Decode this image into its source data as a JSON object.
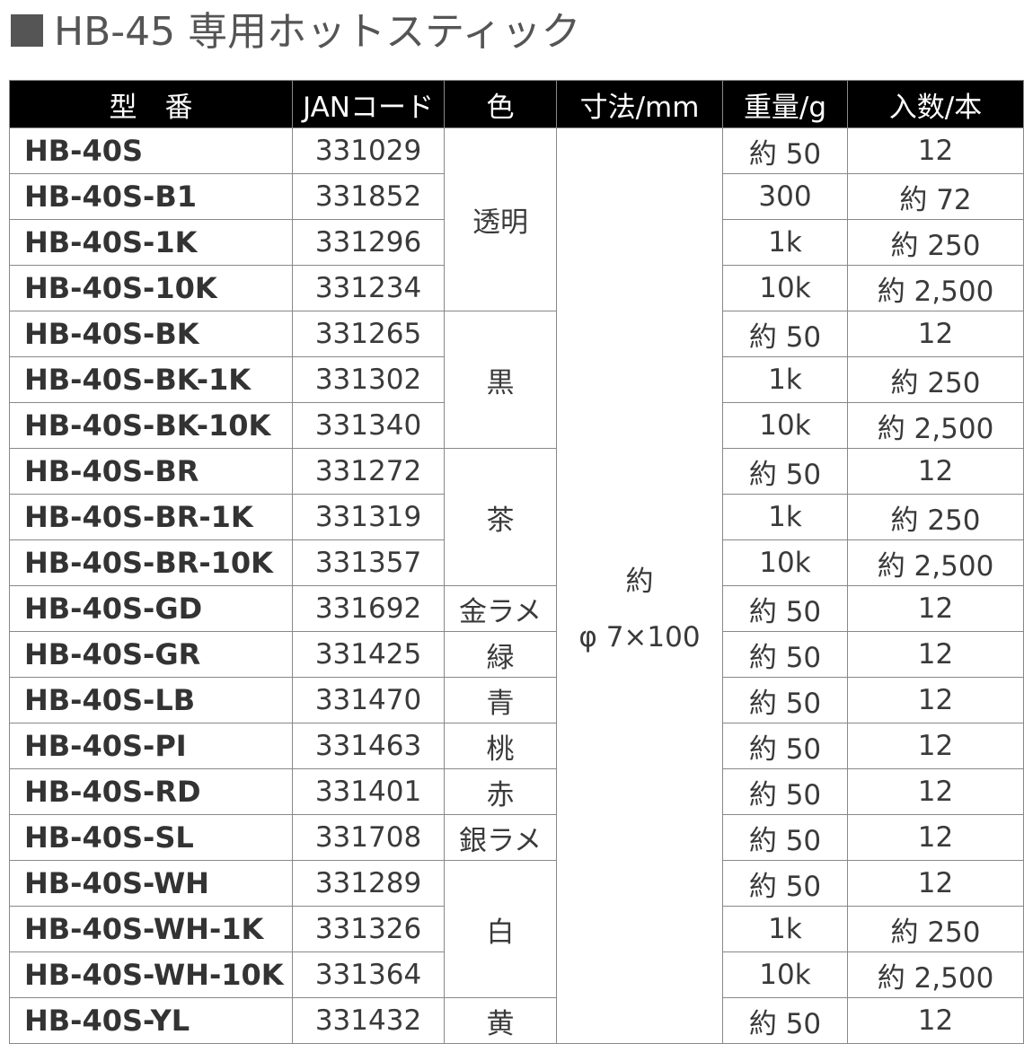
{
  "title": "HB-45 専用ホットスティック",
  "headers": [
    "型　番",
    "JANコード",
    "色",
    "寸法/mm",
    "重量/g",
    "入数/本"
  ],
  "dimension": {
    "line1": "約",
    "line2": "φ 7×100"
  },
  "rows": [
    {
      "model": "HB-40S",
      "jan": "331029",
      "weight": "約 50",
      "qty": "12"
    },
    {
      "model": "HB-40S-B1",
      "jan": "331852",
      "weight": "300",
      "qty": "約 72"
    },
    {
      "model": "HB-40S-1K",
      "jan": "331296",
      "weight": "1k",
      "qty": "約 250"
    },
    {
      "model": "HB-40S-10K",
      "jan": "331234",
      "weight": "10k",
      "qty": "約 2,500"
    },
    {
      "model": "HB-40S-BK",
      "jan": "331265",
      "weight": "約 50",
      "qty": "12"
    },
    {
      "model": "HB-40S-BK-1K",
      "jan": "331302",
      "weight": "1k",
      "qty": "約 250"
    },
    {
      "model": "HB-40S-BK-10K",
      "jan": "331340",
      "weight": "10k",
      "qty": "約 2,500"
    },
    {
      "model": "HB-40S-BR",
      "jan": "331272",
      "weight": "約 50",
      "qty": "12"
    },
    {
      "model": "HB-40S-BR-1K",
      "jan": "331319",
      "weight": "1k",
      "qty": "約 250"
    },
    {
      "model": "HB-40S-BR-10K",
      "jan": "331357",
      "weight": "10k",
      "qty": "約 2,500"
    },
    {
      "model": "HB-40S-GD",
      "jan": "331692",
      "weight": "約 50",
      "qty": "12"
    },
    {
      "model": "HB-40S-GR",
      "jan": "331425",
      "weight": "約 50",
      "qty": "12"
    },
    {
      "model": "HB-40S-LB",
      "jan": "331470",
      "weight": "約 50",
      "qty": "12"
    },
    {
      "model": "HB-40S-PI",
      "jan": "331463",
      "weight": "約 50",
      "qty": "12"
    },
    {
      "model": "HB-40S-RD",
      "jan": "331401",
      "weight": "約 50",
      "qty": "12"
    },
    {
      "model": "HB-40S-SL",
      "jan": "331708",
      "weight": "約 50",
      "qty": "12"
    },
    {
      "model": "HB-40S-WH",
      "jan": "331289",
      "weight": "約 50",
      "qty": "12"
    },
    {
      "model": "HB-40S-WH-1K",
      "jan": "331326",
      "weight": "1k",
      "qty": "約 250"
    },
    {
      "model": "HB-40S-WH-10K",
      "jan": "331364",
      "weight": "10k",
      "qty": "約 2,500"
    },
    {
      "model": "HB-40S-YL",
      "jan": "331432",
      "weight": "約 50",
      "qty": "12"
    }
  ],
  "color_groups": [
    {
      "label": "透明",
      "span": 4
    },
    {
      "label": "黒",
      "span": 3
    },
    {
      "label": "茶",
      "span": 3
    },
    {
      "label": "金ラメ",
      "span": 1
    },
    {
      "label": "緑",
      "span": 1
    },
    {
      "label": "青",
      "span": 1
    },
    {
      "label": "桃",
      "span": 1
    },
    {
      "label": "赤",
      "span": 1
    },
    {
      "label": "銀ラメ",
      "span": 1
    },
    {
      "label": "白",
      "span": 3
    },
    {
      "label": "黄",
      "span": 1
    }
  ]
}
